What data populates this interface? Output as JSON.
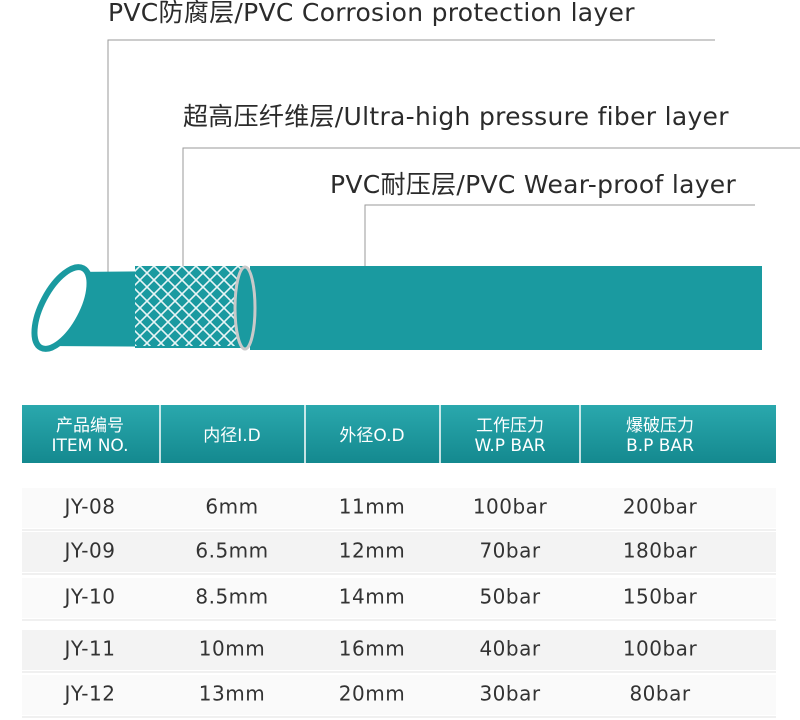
{
  "layers": [
    {
      "label": "PVC防腐层/PVC Corrosion protection layer"
    },
    {
      "label": "超高压纤维层/Ultra-high pressure fiber layer"
    },
    {
      "label": "PVC耐压层/PVC Wear-proof layer"
    }
  ],
  "table": {
    "header": [
      [
        "产品编号",
        "ITEM NO."
      ],
      [
        "内径I.D"
      ],
      [
        "外径O.D"
      ],
      [
        "工作压力",
        "W.P BAR"
      ],
      [
        "爆破压力",
        "B.P BAR"
      ]
    ],
    "rows": [
      [
        "JY-08",
        "6mm",
        "11mm",
        "100bar",
        "200bar"
      ],
      [
        "JY-09",
        "6.5mm",
        "12mm",
        "70bar",
        "180bar"
      ],
      [
        "JY-10",
        "8.5mm",
        "14mm",
        "50bar",
        "150bar"
      ],
      [
        "JY-11",
        "10mm",
        "16mm",
        "40bar",
        "100bar"
      ],
      [
        "JY-12",
        "13mm",
        "20mm",
        "30bar",
        "80bar"
      ]
    ]
  }
}
